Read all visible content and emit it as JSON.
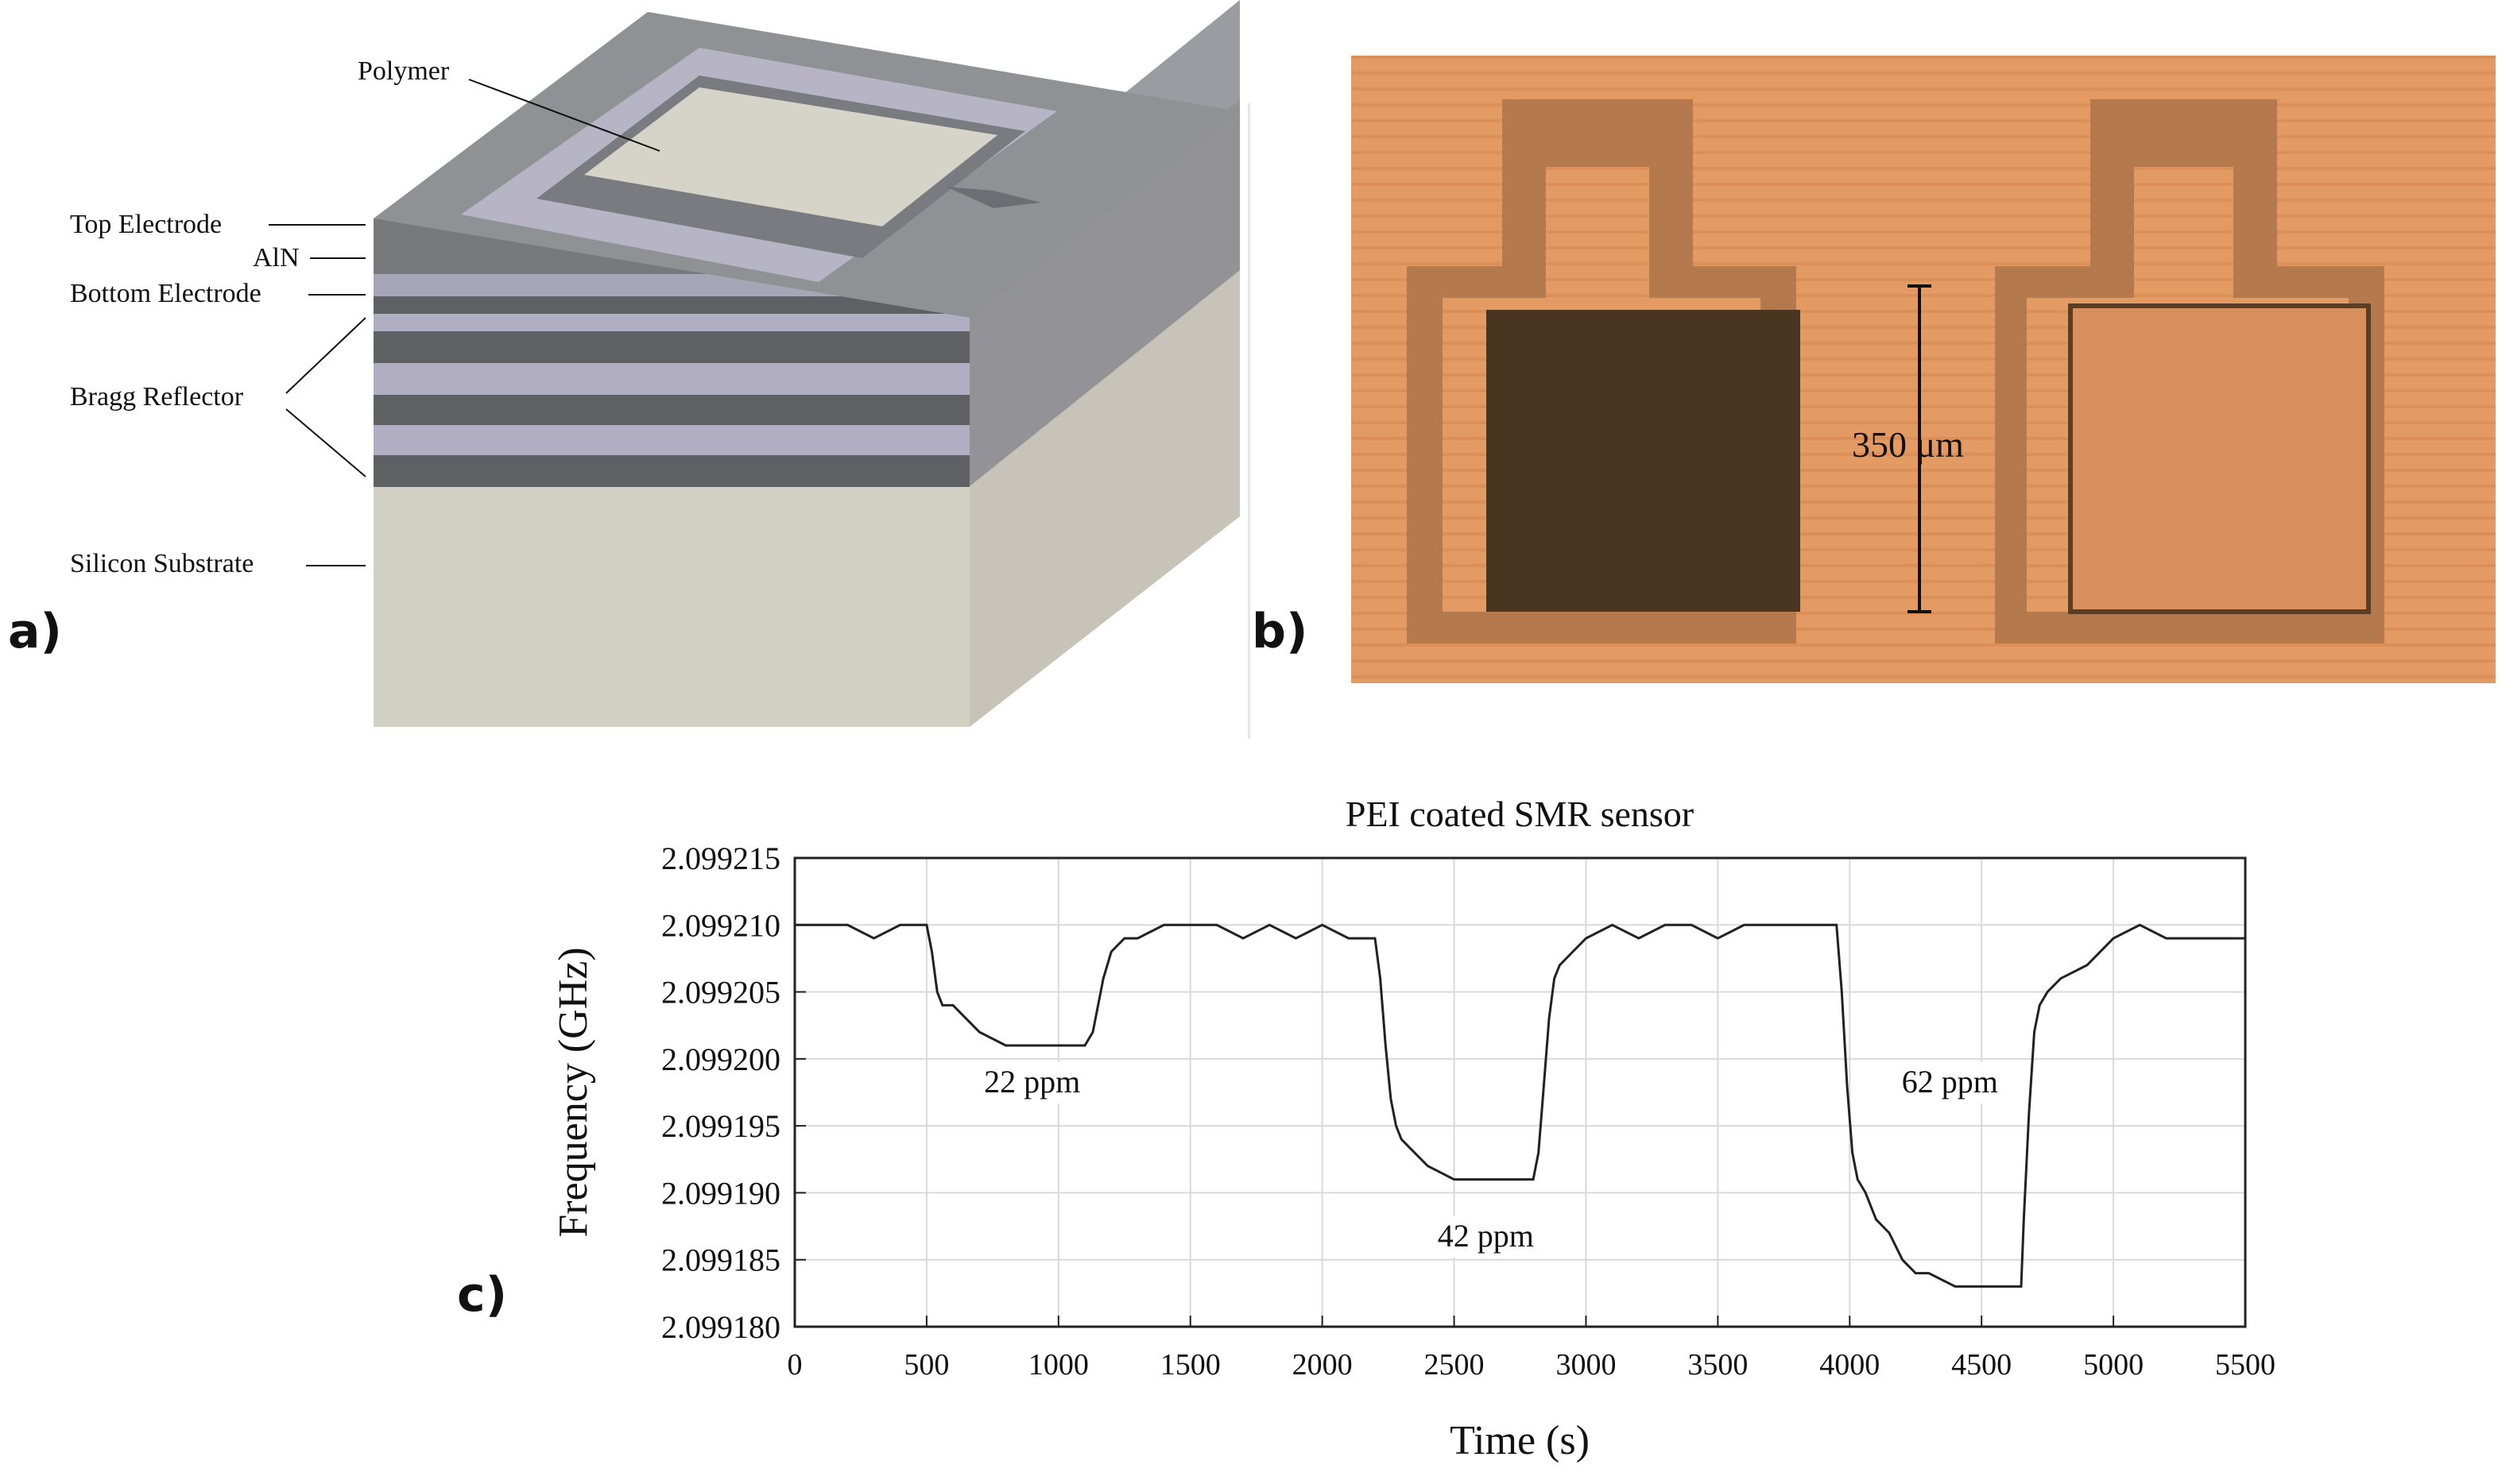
{
  "panel_a": {
    "label": "a)",
    "annotations": {
      "polymer": "Polymer",
      "top_electrode": "Top Electrode",
      "aln": "AlN",
      "bottom_electrode": "Bottom Electrode",
      "bragg_reflector": "Bragg Reflector",
      "silicon_substrate": "Silicon Substrate"
    }
  },
  "panel_b": {
    "label": "b)",
    "scale_bar_label": "350 μm"
  },
  "panel_c": {
    "label": "c)",
    "chart_data": {
      "type": "line",
      "title": "PEI coated SMR sensor",
      "xlabel": "Time (s)",
      "ylabel": "Frequency (GHz)",
      "xlim": [
        0,
        5500
      ],
      "ylim": [
        2.09918,
        2.099215
      ],
      "x_ticks": [
        "0",
        "500",
        "1000",
        "1500",
        "2000",
        "2500",
        "3000",
        "3500",
        "4000",
        "4500",
        "5000",
        "5500"
      ],
      "y_ticks": [
        "2.099180",
        "2.099185",
        "2.099190",
        "2.099195",
        "2.099200",
        "2.099205",
        "2.099210",
        "2.099215"
      ],
      "grid": true,
      "annotations": [
        {
          "text": "22 ppm",
          "x": 900,
          "y": 2.0991975
        },
        {
          "text": "42 ppm",
          "x": 2620,
          "y": 2.099186
        },
        {
          "text": "62 ppm",
          "x": 4380,
          "y": 2.0991975
        }
      ],
      "series": [
        {
          "x": [
            0,
            100,
            200,
            300,
            400,
            500,
            520,
            540,
            560,
            600,
            650,
            700,
            800,
            900,
            1000,
            1050,
            1100,
            1130,
            1150,
            1170,
            1200,
            1250,
            1300,
            1400,
            1500,
            1600,
            1700,
            1800,
            1900,
            2000,
            2100,
            2200,
            2220,
            2240,
            2260,
            2280,
            2300,
            2350,
            2400,
            2500,
            2600,
            2700,
            2800,
            2820,
            2840,
            2860,
            2880,
            2900,
            2950,
            3000,
            3100,
            3200,
            3300,
            3400,
            3500,
            3600,
            3700,
            3800,
            3900,
            3950,
            3970,
            3990,
            4010,
            4030,
            4060,
            4100,
            4150,
            4200,
            4250,
            4300,
            4400,
            4500,
            4600,
            4650,
            4660,
            4680,
            4700,
            4720,
            4750,
            4800,
            4900,
            5000,
            5100,
            5200,
            5300,
            5400,
            5500
          ],
          "y": [
            2.09921,
            2.09921,
            2.09921,
            2.099209,
            2.09921,
            2.09921,
            2.099208,
            2.099205,
            2.099204,
            2.099204,
            2.099203,
            2.099202,
            2.099201,
            2.099201,
            2.099201,
            2.099201,
            2.099201,
            2.099202,
            2.099204,
            2.099206,
            2.099208,
            2.099209,
            2.099209,
            2.09921,
            2.09921,
            2.09921,
            2.099209,
            2.09921,
            2.099209,
            2.09921,
            2.099209,
            2.099209,
            2.099206,
            2.099201,
            2.099197,
            2.099195,
            2.099194,
            2.099193,
            2.099192,
            2.099191,
            2.099191,
            2.099191,
            2.099191,
            2.099193,
            2.099198,
            2.099203,
            2.099206,
            2.099207,
            2.099208,
            2.099209,
            2.09921,
            2.099209,
            2.09921,
            2.09921,
            2.099209,
            2.09921,
            2.09921,
            2.09921,
            2.09921,
            2.09921,
            2.099205,
            2.099198,
            2.099193,
            2.099191,
            2.09919,
            2.099188,
            2.099187,
            2.099185,
            2.099184,
            2.099184,
            2.099183,
            2.099183,
            2.099183,
            2.099183,
            2.099188,
            2.099196,
            2.099202,
            2.099204,
            2.099205,
            2.099206,
            2.099207,
            2.099209,
            2.09921,
            2.099209,
            2.099209,
            2.099209,
            2.099209
          ]
        }
      ]
    }
  }
}
